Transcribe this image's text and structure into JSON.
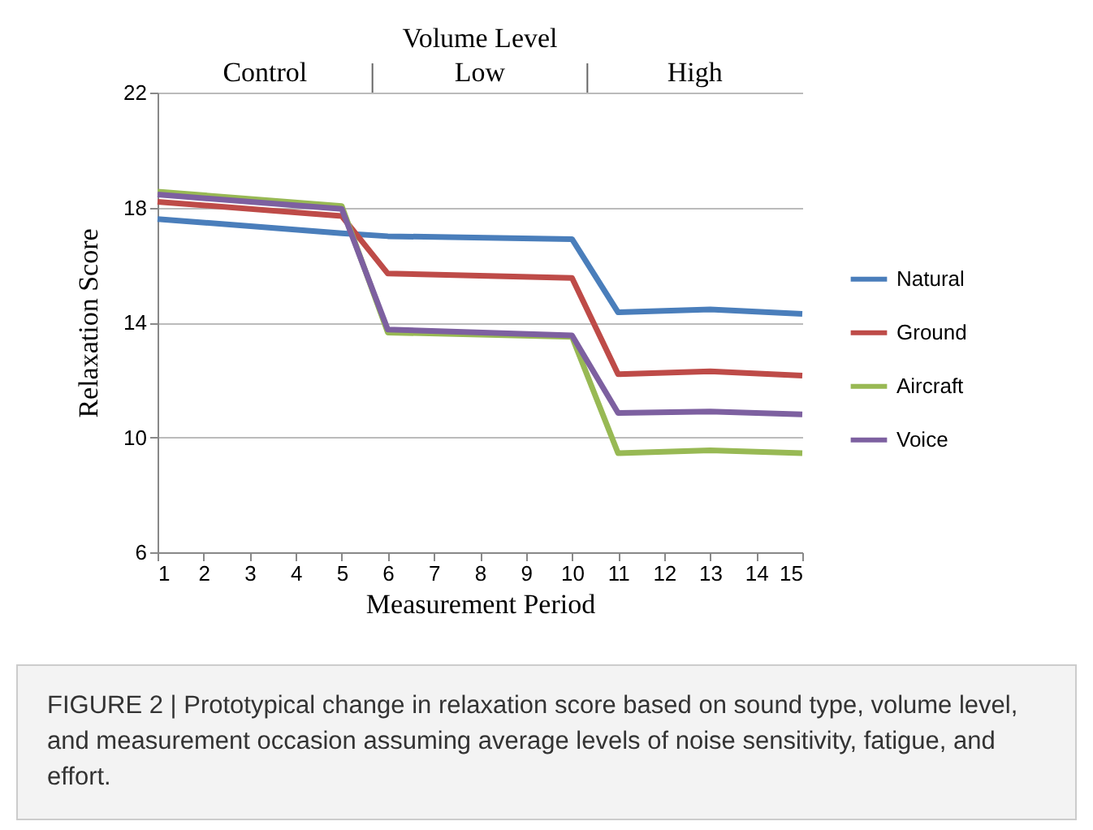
{
  "chart_data": {
    "type": "line",
    "xlabel": "Measurement Period",
    "ylabel": "Relaxation Score",
    "x2label": "Volume Level",
    "x": [
      1,
      5,
      6,
      10,
      11,
      13,
      15
    ],
    "series": [
      {
        "name": "Natural",
        "color": "#4a7ebb",
        "values": [
          17.6,
          17.1,
          17.0,
          16.9,
          14.35,
          14.45,
          14.3
        ]
      },
      {
        "name": "Ground",
        "color": "#be4b48",
        "values": [
          18.2,
          17.7,
          15.7,
          15.55,
          12.2,
          12.3,
          12.15
        ]
      },
      {
        "name": "Aircraft",
        "color": "#98b954",
        "values": [
          18.55,
          18.05,
          13.65,
          13.5,
          9.45,
          9.55,
          9.45
        ]
      },
      {
        "name": "Voice",
        "color": "#7d60a0",
        "values": [
          18.45,
          17.95,
          13.75,
          13.55,
          10.85,
          10.9,
          10.8
        ]
      }
    ],
    "xlim": [
      1,
      15
    ],
    "xticks": [
      1,
      2,
      3,
      4,
      5,
      6,
      7,
      8,
      9,
      10,
      11,
      12,
      13,
      14,
      15
    ],
    "ylim": [
      6,
      22
    ],
    "yticks": [
      6,
      10,
      14,
      18,
      22
    ],
    "grid": "y",
    "legend": "right",
    "marker": "none",
    "line_style": "solid",
    "annotations": [
      "Control",
      "Low",
      "High",
      "FIGURE 2 | Prototypical change in relaxation score based on sound type, volume level, and measurement occasion assuming average levels of noise sensitivity, fatigue, and effort."
    ]
  }
}
